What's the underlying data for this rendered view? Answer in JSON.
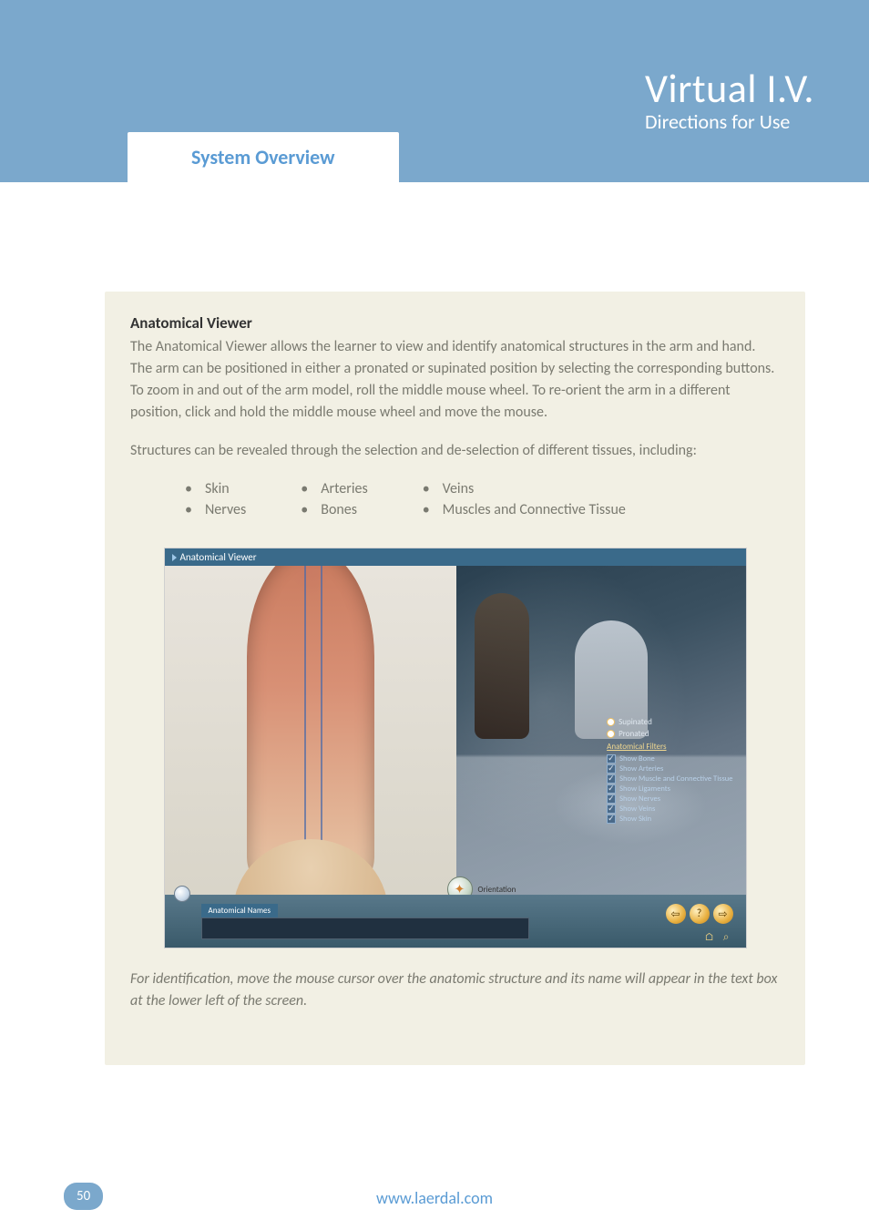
{
  "header": {
    "title": "Virtual I.V.",
    "subtitle": "Directions for Use",
    "tab": "System Overview",
    "band_color": "#7ba8cc",
    "tab_text_color": "#5a9bd4"
  },
  "section": {
    "heading": "Anatomical Viewer",
    "para1": "The Anatomical Viewer allows the learner to view and identify anatomical structures in the arm and hand. The arm can be positioned in either a pronated or supinated position by selecting the corresponding buttons. To zoom in and out of the arm model, roll the middle mouse wheel. To re-orient the arm in a different position, click and hold the middle mouse wheel and move the mouse.",
    "para2": "Structures can be revealed through the selection and de-selection of different tissues, including:",
    "panel_bg": "#f2f0e4",
    "text_color": "#7a7a70"
  },
  "tissues": {
    "col1": [
      "Skin",
      "Nerves"
    ],
    "col2": [
      "Arteries",
      "Bones"
    ],
    "col3": [
      "Veins",
      "Muscles  and Connective Tissue"
    ]
  },
  "screenshot": {
    "window_title": "Anatomical Viewer",
    "orientation_label": "Orientation",
    "radio_supinated": "Supinated",
    "radio_pronated": "Pronated",
    "filters_heading": "Anatomical Filters",
    "filters": [
      {
        "label": "Show Bone",
        "checked": true
      },
      {
        "label": "Show Arteries",
        "checked": true
      },
      {
        "label": "Show Muscle and Connective Tissue",
        "checked": true
      },
      {
        "label": "Show Ligaments",
        "checked": true
      },
      {
        "label": "Show Nerves",
        "checked": true
      },
      {
        "label": "Show Veins",
        "checked": true
      },
      {
        "label": "Show Skin",
        "checked": true
      }
    ],
    "anatomical_names_label": "Anatomical Names",
    "nav_back": "⇦",
    "nav_help": "?",
    "nav_forward": "⇨",
    "home_icon": "⌂",
    "search_icon": "⌕",
    "header_bg": "#3a6a8a"
  },
  "caption": "For identification, move the mouse cursor over the anatomic structure and its name will appear in the text box at the lower left of the screen.",
  "footer": {
    "page": "50",
    "url": "www.laerdal.com",
    "pill_bg": "#7ba8cc",
    "url_color": "#5a9bd4"
  }
}
